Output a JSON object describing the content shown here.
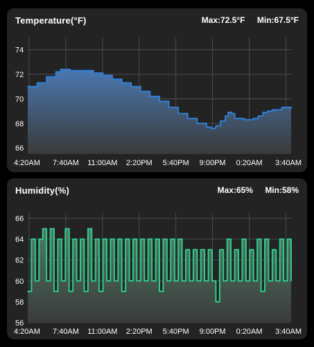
{
  "charts": [
    {
      "id": "temperature",
      "title": "Temperature(°F)",
      "max_label": "Max:72.5°F",
      "min_label": "Min:67.5°F",
      "line_color": "#2f7fd6",
      "fill_top_color": "#4a78b0",
      "fill_bottom_color": "#3a3a3a"
    },
    {
      "id": "humidity",
      "title": "Humidity(%)",
      "max_label": "Max:65%",
      "min_label": "Min:58%",
      "line_color": "#2ecc8a",
      "fill_top_color": "#4f7a66",
      "fill_bottom_color": "#3a3a3a"
    }
  ],
  "chart_data": [
    {
      "type": "area",
      "title": "Temperature(°F)",
      "xlabel": "",
      "ylabel": "",
      "x_tick_labels": [
        "4:20AM",
        "7:40AM",
        "11:00AM",
        "2:20PM",
        "5:40PM",
        "9:00PM",
        "0:20AM",
        "3:40AM"
      ],
      "y_ticks": [
        66,
        68,
        70,
        72,
        74
      ],
      "ylim": [
        65.5,
        75
      ],
      "x_hours": [
        0,
        1,
        2,
        3,
        3.5,
        4,
        4.5,
        5,
        5.5,
        6,
        7,
        8,
        9,
        10,
        11,
        12,
        13,
        14,
        15,
        16,
        17,
        18,
        19,
        19.5,
        20,
        20.5,
        21,
        21.3,
        21.7,
        22,
        22.5,
        23,
        24,
        24.5,
        25,
        25.5,
        26,
        27,
        28
      ],
      "values": [
        71.0,
        71.3,
        71.8,
        72.2,
        72.4,
        72.4,
        72.3,
        72.3,
        72.3,
        72.3,
        72.1,
        71.9,
        71.6,
        71.3,
        71.0,
        70.6,
        70.2,
        69.8,
        69.3,
        68.8,
        68.4,
        68.0,
        67.7,
        67.6,
        67.8,
        68.2,
        68.6,
        68.9,
        68.8,
        68.4,
        68.4,
        68.3,
        68.4,
        68.6,
        68.9,
        69.0,
        69.1,
        69.3,
        69.2
      ],
      "grid": true
    },
    {
      "type": "area",
      "title": "Humidity(%)",
      "xlabel": "",
      "ylabel": "",
      "x_tick_labels": [
        "4:20AM",
        "7:40AM",
        "11:00AM",
        "2:20PM",
        "5:40PM",
        "9:00PM",
        "0:20AM",
        "3:40AM"
      ],
      "y_ticks": [
        56,
        58,
        60,
        62,
        64,
        66
      ],
      "ylim": [
        56,
        66.5
      ],
      "x_hours": [
        0,
        0.4,
        0.8,
        1.2,
        1.6,
        2.0,
        2.4,
        2.8,
        3.2,
        3.6,
        4.0,
        4.4,
        4.8,
        5.2,
        5.6,
        6.0,
        6.4,
        6.8,
        7.2,
        7.6,
        8.0,
        8.4,
        8.8,
        9.2,
        9.6,
        10.0,
        10.4,
        10.8,
        11.2,
        11.6,
        12.0,
        12.4,
        12.8,
        13.2,
        13.6,
        14.0,
        14.4,
        14.8,
        15.2,
        15.6,
        16.0,
        16.4,
        16.8,
        17.2,
        17.6,
        18.0,
        18.4,
        18.8,
        19.2,
        19.6,
        20.0,
        20.4,
        20.8,
        21.2,
        21.6,
        22.0,
        22.4,
        22.8,
        23.2,
        23.6,
        24.0,
        24.4,
        24.8,
        25.2,
        25.6,
        26.0,
        26.4,
        26.8,
        27.2,
        27.6,
        28.0
      ],
      "values": [
        59,
        64,
        60,
        64,
        65,
        60,
        65,
        59,
        64,
        60,
        65,
        59,
        64,
        60,
        64,
        59,
        65,
        60,
        64,
        59,
        64,
        60,
        64,
        60,
        64,
        59,
        64,
        60,
        64,
        60,
        64,
        60,
        64,
        60,
        64,
        59,
        64,
        60,
        64,
        60,
        64,
        60,
        63,
        60,
        63,
        60,
        63,
        60,
        63,
        60,
        58,
        63,
        60,
        64,
        60,
        63,
        60,
        64,
        60,
        63,
        60,
        64,
        59,
        64,
        60,
        63,
        60,
        64,
        60,
        64,
        60
      ],
      "grid": true
    }
  ]
}
